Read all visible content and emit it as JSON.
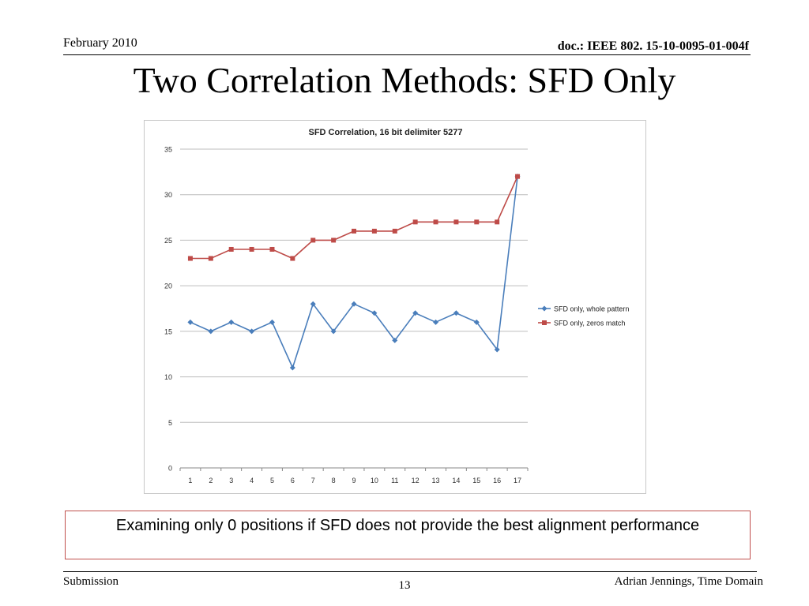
{
  "header": {
    "date": "February 2010",
    "doc": "doc.: IEEE 802. 15-10-0095-01-004f"
  },
  "slide": {
    "title": "Two Correlation Methods: SFD Only",
    "callout": "Examining only 0 positions if SFD does not provide the best alignment performance"
  },
  "footer": {
    "left": "Submission",
    "page": "13",
    "right": "Adrian Jennings, Time Domain"
  },
  "chart_data": {
    "type": "line",
    "title": "SFD Correlation, 16 bit delimiter 5277",
    "xlabel": "",
    "ylabel": "",
    "x": [
      1,
      2,
      3,
      4,
      5,
      6,
      7,
      8,
      9,
      10,
      11,
      12,
      13,
      14,
      15,
      16,
      17
    ],
    "ylim": [
      0,
      35
    ],
    "yticks": [
      0,
      5,
      10,
      15,
      20,
      25,
      30,
      35
    ],
    "grid": true,
    "legend": "right",
    "series": [
      {
        "name": "SFD only, whole pattern",
        "color": "#4a7ebb",
        "marker": "diamond",
        "values": [
          16,
          15,
          16,
          15,
          16,
          11,
          18,
          15,
          18,
          17,
          14,
          17,
          16,
          17,
          16,
          13,
          32
        ]
      },
      {
        "name": "SFD only, zeros match",
        "color": "#be4b48",
        "marker": "square",
        "values": [
          23,
          23,
          24,
          24,
          24,
          23,
          25,
          25,
          26,
          26,
          26,
          27,
          27,
          27,
          27,
          27,
          32
        ]
      }
    ]
  }
}
